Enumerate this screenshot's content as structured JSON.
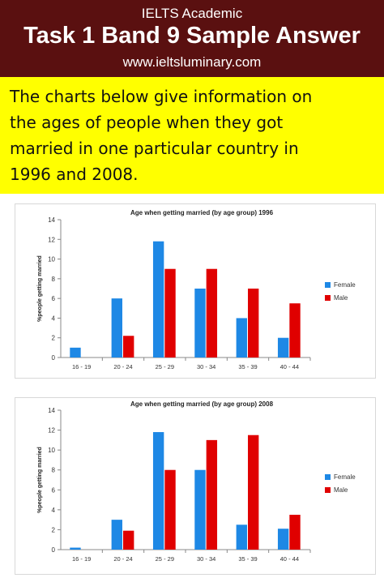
{
  "header": {
    "subtitle": "IELTS Academic",
    "title": "Task 1 Band 9 Sample Answer",
    "url": "www.ieltsluminary.com"
  },
  "task": {
    "lines": [
      "The charts below give information on",
      "the ages of people when they got",
      "married in one particular country in",
      "1996 and 2008."
    ]
  },
  "colors": {
    "female": "#1e88e5",
    "male": "#e00000",
    "header_bg": "#5a1010",
    "task_bg": "#ffff00"
  },
  "chart_data": [
    {
      "type": "bar",
      "title": "Age when getting married (by age group) 1996",
      "xlabel": "",
      "ylabel": "%people getting married",
      "categories": [
        "16 - 19",
        "20 - 24",
        "25 - 29",
        "30 - 34",
        "35 - 39",
        "40 - 44"
      ],
      "series": [
        {
          "name": "Female",
          "values": [
            1,
            6,
            11.8,
            7,
            4,
            2
          ]
        },
        {
          "name": "Male",
          "values": [
            0,
            2.2,
            9,
            9,
            7,
            5.5
          ]
        }
      ],
      "ylim": [
        0,
        14
      ],
      "yticks": [
        "0",
        "2",
        "4",
        "6",
        "8",
        "10",
        "12",
        "14"
      ],
      "legend": "right",
      "grid": false
    },
    {
      "type": "bar",
      "title": "Age when getting married (by age group) 2008",
      "xlabel": "",
      "ylabel": "%people getting married",
      "categories": [
        "16 - 19",
        "20 - 24",
        "25 - 29",
        "30 - 34",
        "35 - 39",
        "40 - 44"
      ],
      "series": [
        {
          "name": "Female",
          "values": [
            0.2,
            3,
            11.8,
            8,
            2.5,
            2.1
          ]
        },
        {
          "name": "Male",
          "values": [
            0,
            1.9,
            8,
            11,
            11.5,
            3.5
          ]
        }
      ],
      "ylim": [
        0,
        14
      ],
      "yticks": [
        "0",
        "2",
        "4",
        "6",
        "8",
        "10",
        "12",
        "14"
      ],
      "legend": "right",
      "grid": false
    }
  ]
}
